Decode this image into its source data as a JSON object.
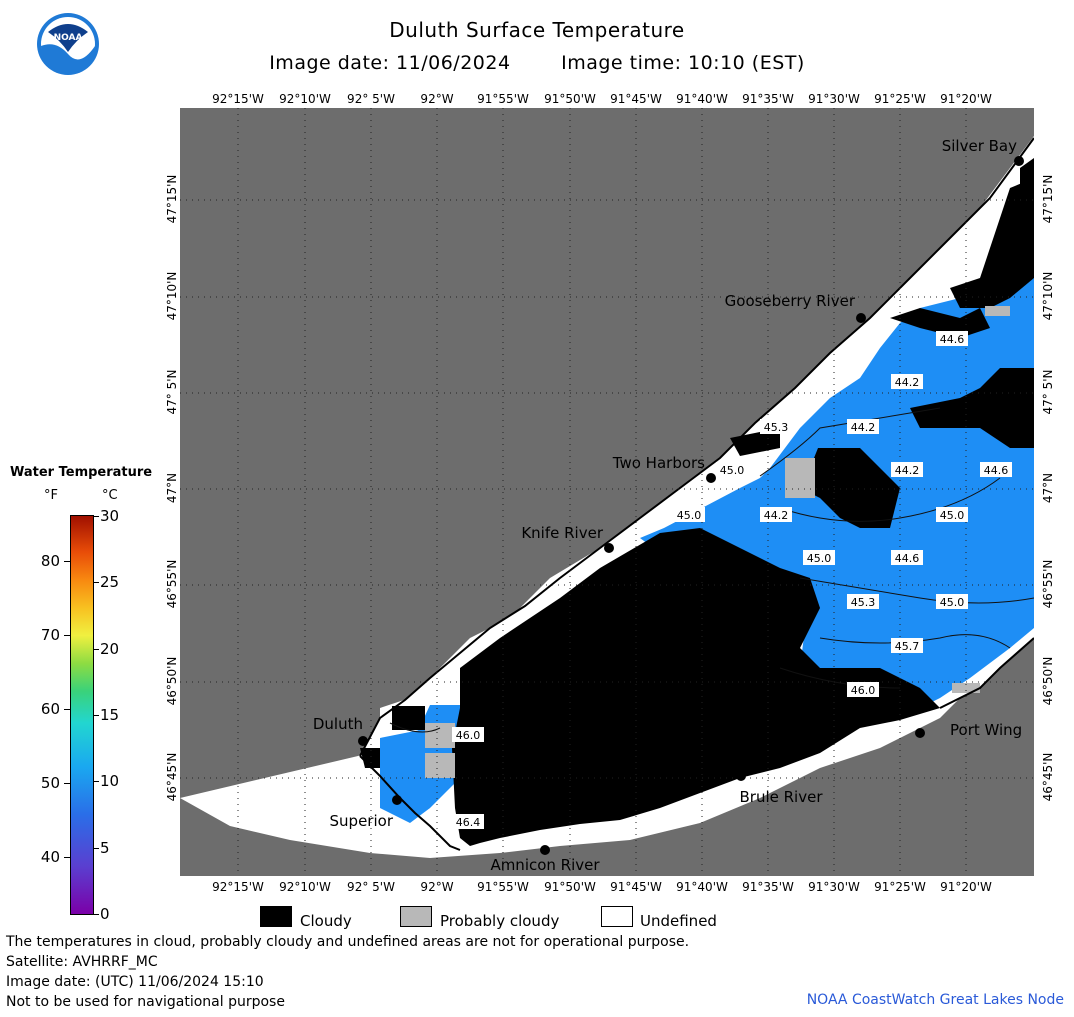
{
  "header": {
    "title": "Duluth Surface Temperature",
    "image_date": "Image date: 11/06/2024",
    "image_time": "Image time: 10:10 (EST)"
  },
  "logo": {
    "icon": "noaa-logo-icon",
    "text": "NOAA"
  },
  "lon_labels": [
    "92°15'W",
    "92°10'W",
    "92° 5'W",
    "92°W",
    "91°55'W",
    "91°50'W",
    "91°45'W",
    "91°40'W",
    "91°35'W",
    "91°30'W",
    "91°25'W",
    "91°20'W"
  ],
  "lat_labels": [
    "47°15'N",
    "47°10'N",
    "47° 5'N",
    "47°N",
    "46°55'N",
    "46°50'N",
    "46°45'N"
  ],
  "places": [
    {
      "name": "Silver Bay"
    },
    {
      "name": "Gooseberry River"
    },
    {
      "name": "Two Harbors"
    },
    {
      "name": "Knife River"
    },
    {
      "name": "Duluth"
    },
    {
      "name": "Superior"
    },
    {
      "name": "Amnicon River"
    },
    {
      "name": "Brule River"
    },
    {
      "name": "Port Wing"
    }
  ],
  "temperature_labels": [
    "44.6",
    "44.2",
    "45.3",
    "44.2",
    "45.0",
    "44.2",
    "44.6",
    "45.0",
    "44.2",
    "45.0",
    "45.0",
    "44.6",
    "45.3",
    "45.0",
    "45.7",
    "46.0",
    "46.0",
    "46.4"
  ],
  "legend": {
    "title": "Water Temperature",
    "unit_f": "°F",
    "unit_c": "°C",
    "ticks_f": [
      "80",
      "70",
      "60",
      "50",
      "40"
    ],
    "ticks_c": [
      "30",
      "25",
      "20",
      "15",
      "10",
      "5",
      "0"
    ],
    "range_c": [
      0,
      30
    ],
    "cloudy": "Cloudy",
    "probably_cloudy": "Probably cloudy",
    "undefined": "Undefined"
  },
  "colors": {
    "land": "#6d6d6d",
    "water": "#1e90ff",
    "cloud": "#000000",
    "probably_cloudy": "#b8b8b8",
    "undefined": "#ffffff"
  },
  "notes": {
    "line1": "The temperatures in cloud, probably cloudy and undefined areas are not for operational purpose.",
    "line2": "Satellite: AVHRRF_MC",
    "line3": "Image date: (UTC) 11/06/2024  15:10",
    "line4": "Not to be used for navigational purpose"
  },
  "credit": "NOAA CoastWatch Great Lakes Node"
}
